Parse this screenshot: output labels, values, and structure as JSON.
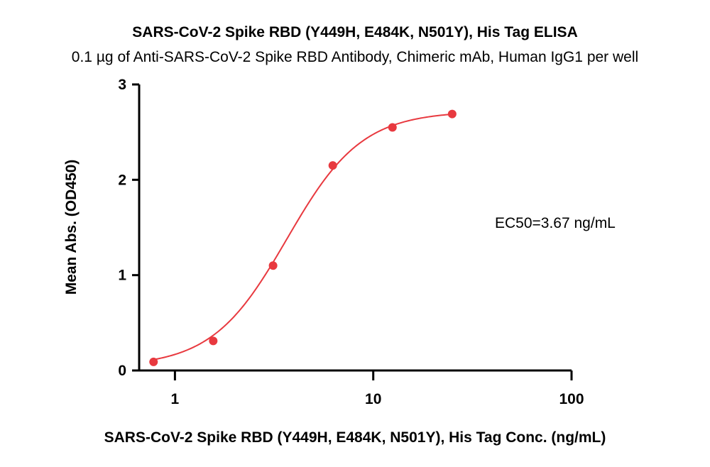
{
  "chart_data": {
    "type": "scatter",
    "title": "SARS-CoV-2 Spike RBD (Y449H, E484K, N501Y), His Tag ELISA",
    "subtitle": "0.1 µg of Anti-SARS-CoV-2 Spike RBD Antibody, Chimeric mAb, Human IgG1 per well",
    "xlabel": "SARS-CoV-2 Spike RBD (Y449H, E484K, N501Y), His Tag Conc. (ng/mL)",
    "ylabel": "Mean Abs. (OD450)",
    "x_scale": "log",
    "xlim": [
      0.66,
      100
    ],
    "ylim": [
      0,
      3
    ],
    "x_ticks": [
      "1",
      "10",
      "100"
    ],
    "y_ticks": [
      "0",
      "1",
      "2",
      "3"
    ],
    "color": "#e8393f",
    "series": [
      {
        "x": [
          0.78,
          1.56,
          3.125,
          6.25,
          12.5,
          25
        ],
        "y": [
          0.09,
          0.31,
          1.1,
          2.15,
          2.55,
          2.69
        ]
      }
    ],
    "fit": {
      "bottom": 0.04,
      "top": 2.72,
      "ec50": 3.67,
      "hill": 2.3
    },
    "annotation": "EC50=3.67 ng/mL",
    "grid": false,
    "legend": "none"
  }
}
